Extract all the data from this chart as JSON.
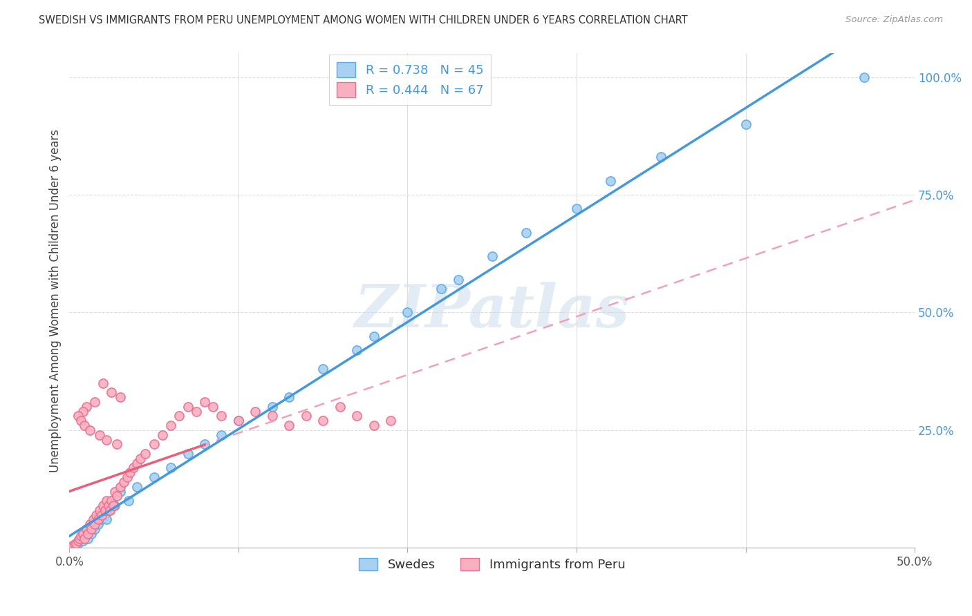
{
  "title": "SWEDISH VS IMMIGRANTS FROM PERU UNEMPLOYMENT AMONG WOMEN WITH CHILDREN UNDER 6 YEARS CORRELATION CHART",
  "source": "Source: ZipAtlas.com",
  "ylabel": "Unemployment Among Women with Children Under 6 years",
  "legend_label_blue": "Swedes",
  "legend_label_pink": "Immigrants from Peru",
  "R_blue": 0.738,
  "N_blue": 45,
  "R_pink": 0.444,
  "N_pink": 67,
  "blue_fill": "#A8D0F0",
  "blue_edge": "#5AAAE8",
  "pink_fill": "#F8B0C0",
  "pink_edge": "#E87090",
  "blue_line": "#4499DD",
  "pink_line": "#E8607A",
  "pink_dash": "#F0A0B8",
  "watermark": "ZIPatlas",
  "xmin": 0.0,
  "xmax": 0.5,
  "ymin": 0.0,
  "ymax": 1.05,
  "blue_scatter_x": [
    0.005,
    0.007,
    0.008,
    0.009,
    0.01,
    0.011,
    0.012,
    0.013,
    0.014,
    0.015,
    0.016,
    0.017,
    0.018,
    0.019,
    0.02,
    0.021,
    0.022,
    0.023,
    0.024,
    0.025,
    0.027,
    0.03,
    0.035,
    0.04,
    0.05,
    0.06,
    0.07,
    0.08,
    0.09,
    0.1,
    0.12,
    0.13,
    0.15,
    0.17,
    0.18,
    0.2,
    0.22,
    0.23,
    0.25,
    0.27,
    0.3,
    0.32,
    0.35,
    0.4,
    0.47
  ],
  "blue_scatter_y": [
    0.01,
    0.02,
    0.015,
    0.025,
    0.03,
    0.02,
    0.04,
    0.03,
    0.05,
    0.04,
    0.06,
    0.05,
    0.07,
    0.06,
    0.08,
    0.07,
    0.06,
    0.09,
    0.08,
    0.1,
    0.09,
    0.12,
    0.1,
    0.13,
    0.15,
    0.17,
    0.2,
    0.22,
    0.24,
    0.27,
    0.3,
    0.32,
    0.38,
    0.42,
    0.45,
    0.5,
    0.55,
    0.57,
    0.62,
    0.67,
    0.72,
    0.78,
    0.83,
    0.9,
    1.0
  ],
  "pink_scatter_x": [
    0.002,
    0.003,
    0.004,
    0.005,
    0.006,
    0.007,
    0.008,
    0.009,
    0.01,
    0.011,
    0.012,
    0.013,
    0.014,
    0.015,
    0.016,
    0.017,
    0.018,
    0.019,
    0.02,
    0.021,
    0.022,
    0.023,
    0.024,
    0.025,
    0.026,
    0.027,
    0.028,
    0.03,
    0.032,
    0.034,
    0.036,
    0.038,
    0.04,
    0.042,
    0.045,
    0.05,
    0.055,
    0.06,
    0.065,
    0.07,
    0.075,
    0.08,
    0.085,
    0.09,
    0.1,
    0.11,
    0.12,
    0.13,
    0.14,
    0.15,
    0.16,
    0.17,
    0.18,
    0.19,
    0.02,
    0.025,
    0.03,
    0.015,
    0.01,
    0.008,
    0.005,
    0.007,
    0.009,
    0.012,
    0.018,
    0.022,
    0.028
  ],
  "pink_scatter_y": [
    0.005,
    0.008,
    0.01,
    0.015,
    0.02,
    0.025,
    0.03,
    0.02,
    0.04,
    0.03,
    0.05,
    0.04,
    0.06,
    0.05,
    0.07,
    0.06,
    0.08,
    0.07,
    0.09,
    0.08,
    0.1,
    0.09,
    0.08,
    0.1,
    0.09,
    0.12,
    0.11,
    0.13,
    0.14,
    0.15,
    0.16,
    0.17,
    0.18,
    0.19,
    0.2,
    0.22,
    0.24,
    0.26,
    0.28,
    0.3,
    0.29,
    0.31,
    0.3,
    0.28,
    0.27,
    0.29,
    0.28,
    0.26,
    0.28,
    0.27,
    0.3,
    0.28,
    0.26,
    0.27,
    0.35,
    0.33,
    0.32,
    0.31,
    0.3,
    0.29,
    0.28,
    0.27,
    0.26,
    0.25,
    0.24,
    0.23,
    0.22
  ]
}
